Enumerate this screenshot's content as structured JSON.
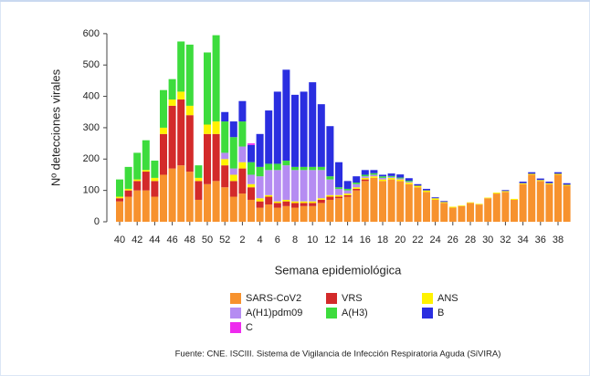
{
  "chart_data": {
    "type": "stacked_bar",
    "y_label": "Nº detecciones virales",
    "x_label": "Semana epidemiológica",
    "source": "Fuente: CNE. ISCIII. Sistema de Vigilancia de Infección Respiratoria Aguda (SiVIRA)",
    "categories": [
      "40",
      null,
      "42",
      null,
      "44",
      null,
      "46",
      null,
      "48",
      null,
      "50",
      null,
      "52",
      null,
      "2",
      null,
      "4",
      null,
      "6",
      null,
      "8",
      null,
      "10",
      null,
      "12",
      null,
      "14",
      null,
      "16",
      null,
      "18",
      null,
      "20",
      null,
      "22",
      null,
      "24",
      null,
      "26",
      null,
      "28",
      null,
      "30",
      null,
      "32",
      null,
      "34",
      null,
      "36",
      null,
      "38",
      null
    ],
    "ylim": [
      0,
      620
    ],
    "yticks": [
      0,
      100,
      200,
      300,
      400,
      500,
      600
    ],
    "series": [
      {
        "name": "SARS-CoV2",
        "color": "#f7922e",
        "values": [
          65,
          80,
          100,
          100,
          80,
          150,
          170,
          180,
          160,
          70,
          120,
          130,
          110,
          80,
          90,
          70,
          45,
          55,
          45,
          50,
          45,
          50,
          50,
          60,
          70,
          75,
          80,
          100,
          130,
          140,
          130,
          135,
          130,
          120,
          110,
          95,
          70,
          60,
          45,
          50,
          60,
          55,
          75,
          90,
          95,
          70,
          120,
          150,
          130,
          120,
          150,
          115
        ]
      },
      {
        "name": "VRS",
        "color": "#d32a2a",
        "values": [
          10,
          20,
          30,
          60,
          50,
          130,
          200,
          210,
          180,
          60,
          160,
          150,
          70,
          50,
          80,
          40,
          20,
          25,
          15,
          15,
          15,
          10,
          10,
          10,
          10,
          5,
          5,
          5,
          5,
          0,
          0,
          0,
          0,
          0,
          0,
          0,
          0,
          0,
          0,
          0,
          0,
          0,
          0,
          0,
          0,
          0,
          0,
          0,
          0,
          0,
          0,
          0
        ]
      },
      {
        "name": "ANS",
        "color": "#fff200",
        "values": [
          5,
          5,
          5,
          5,
          10,
          20,
          20,
          25,
          30,
          10,
          30,
          40,
          20,
          20,
          20,
          10,
          10,
          5,
          5,
          5,
          5,
          5,
          5,
          5,
          5,
          5,
          5,
          5,
          5,
          5,
          5,
          5,
          5,
          5,
          5,
          5,
          5,
          3,
          3,
          2,
          2,
          2,
          2,
          3,
          3,
          3,
          3,
          3,
          3,
          3,
          3,
          3
        ]
      },
      {
        "name": "A(H1)pdm09",
        "color": "#b58cf2",
        "values": [
          0,
          0,
          0,
          0,
          0,
          0,
          0,
          0,
          0,
          0,
          0,
          0,
          20,
          20,
          50,
          30,
          70,
          80,
          100,
          110,
          100,
          100,
          100,
          90,
          50,
          20,
          10,
          10,
          5,
          5,
          5,
          3,
          3,
          3,
          0,
          0,
          0,
          0,
          0,
          0,
          0,
          0,
          0,
          0,
          0,
          0,
          0,
          0,
          0,
          0,
          0,
          0
        ]
      },
      {
        "name": "A(H3)",
        "color": "#3ddc3d",
        "values": [
          55,
          70,
          85,
          95,
          55,
          120,
          65,
          160,
          195,
          40,
          230,
          275,
          100,
          100,
          80,
          40,
          30,
          20,
          20,
          15,
          10,
          10,
          10,
          10,
          10,
          5,
          5,
          5,
          5,
          5,
          5,
          3,
          3,
          3,
          0,
          0,
          0,
          0,
          0,
          0,
          0,
          0,
          0,
          0,
          0,
          0,
          0,
          0,
          0,
          0,
          0,
          0
        ]
      },
      {
        "name": "B",
        "color": "#2a2ee0",
        "values": [
          0,
          0,
          0,
          0,
          0,
          0,
          0,
          0,
          0,
          0,
          0,
          0,
          30,
          50,
          65,
          55,
          105,
          170,
          230,
          290,
          230,
          240,
          270,
          200,
          160,
          80,
          25,
          20,
          15,
          10,
          5,
          8,
          10,
          8,
          5,
          5,
          3,
          3,
          0,
          0,
          0,
          0,
          0,
          0,
          3,
          0,
          5,
          5,
          5,
          5,
          5,
          5
        ]
      },
      {
        "name": "C",
        "color": "#ee2aee",
        "values": [
          0,
          0,
          0,
          0,
          0,
          0,
          0,
          0,
          0,
          0,
          0,
          0,
          0,
          0,
          0,
          5,
          0,
          0,
          0,
          0,
          0,
          0,
          0,
          0,
          0,
          0,
          0,
          0,
          0,
          0,
          0,
          0,
          0,
          0,
          0,
          0,
          0,
          0,
          0,
          0,
          0,
          0,
          0,
          0,
          0,
          0,
          0,
          0,
          0,
          0,
          0,
          0
        ]
      }
    ]
  }
}
